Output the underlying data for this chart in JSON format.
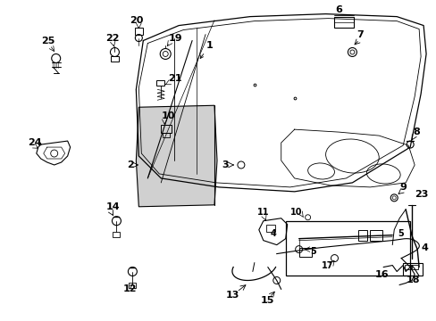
{
  "background_color": "#ffffff",
  "line_color": "#000000",
  "fig_width": 4.89,
  "fig_height": 3.6,
  "dpi": 100,
  "label_fontsize": 8.0,
  "label_fontsize_sm": 7.0
}
